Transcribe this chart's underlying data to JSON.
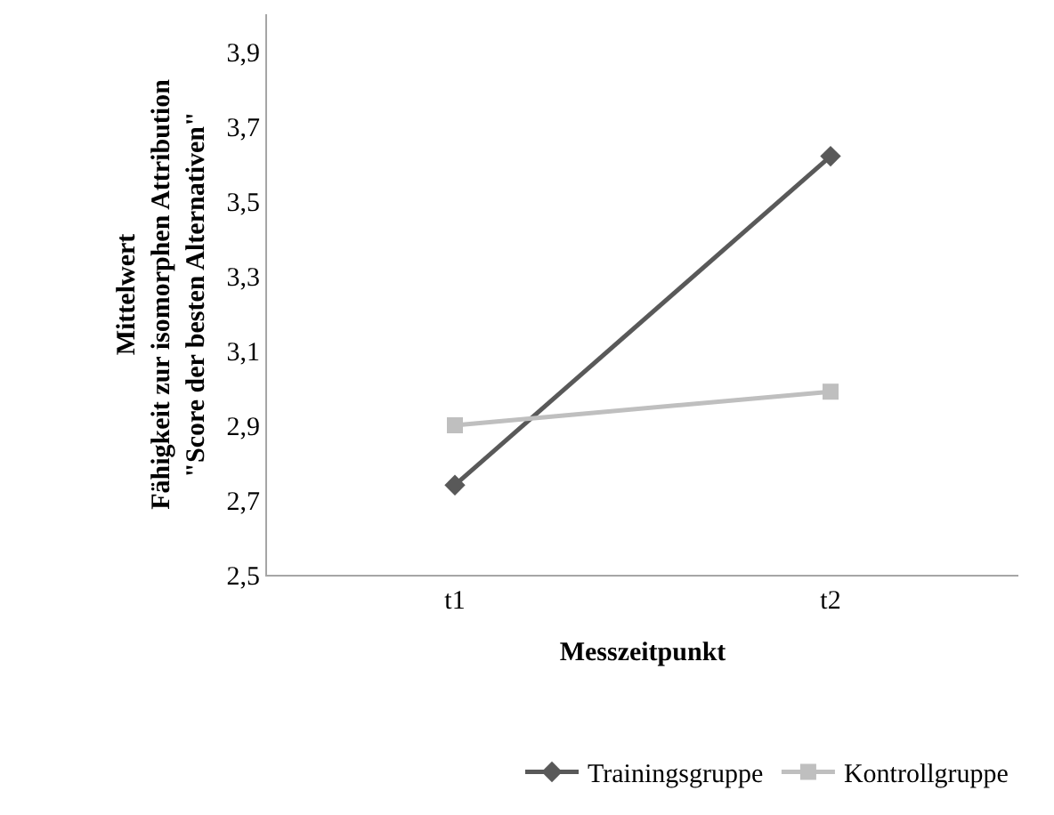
{
  "chart_data": {
    "type": "line",
    "xlabel": "Messzeitpunkt",
    "ylabel": "Mittelwert\nFähigkeit zur isomorphen Attribution\n\"Score der besten Alternativen\"",
    "categories": [
      "t1",
      "t2"
    ],
    "series": [
      {
        "name": "Trainingsgruppe",
        "color": "#595959",
        "marker": "diamond",
        "values": [
          2.74,
          3.62
        ]
      },
      {
        "name": "Kontrollgruppe",
        "color": "#bfbfbf",
        "marker": "square",
        "values": [
          2.9,
          2.99
        ]
      }
    ],
    "ylim": [
      2.5,
      4.0
    ],
    "yticks": [
      {
        "value": 2.5,
        "label": "2,5"
      },
      {
        "value": 2.7,
        "label": "2,7"
      },
      {
        "value": 2.9,
        "label": "2,9"
      },
      {
        "value": 3.1,
        "label": "3,1"
      },
      {
        "value": 3.3,
        "label": "3,3"
      },
      {
        "value": 3.5,
        "label": "3,5"
      },
      {
        "value": 3.7,
        "label": "3,7"
      },
      {
        "value": 3.9,
        "label": "3,9"
      }
    ],
    "legend": "bottom",
    "line_style": "solid"
  }
}
